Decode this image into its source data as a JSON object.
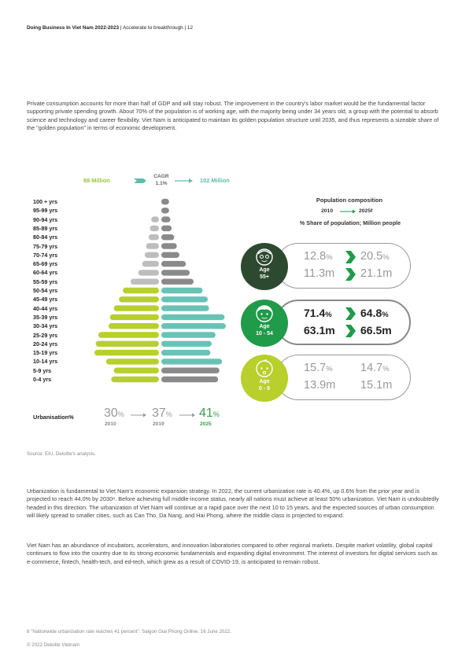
{
  "header": {
    "title": "Doing Business In Viet Nam 2022-2023",
    "rest": " | Accelerate to breakthrough | 12"
  },
  "intro_paragraph": "Private consumption accounts for more than half of GDP and will stay robust. The improvement in the country's labor market would be the fundamental factor supporting private spending growth. About 70% of the population is of working age, with the majority being under 34 years old, a group with the potential to absorb science and technology and career flexibility. Viet Nam is anticipated to maintain its golden population structure until 2035, and thus represents a sizeable share of the \"golden population\" in terms of economic development.",
  "pyramid": {
    "total_2010": "88 Million",
    "total_2025": "102 Million",
    "cagr_label": "CAGR",
    "cagr_value": "1.1%",
    "colors": {
      "young_2010": "#b8cf2c",
      "working_2010": "#b8cf2c",
      "old_2010": "#bdbdbd",
      "young_2025": "#8a8a8a",
      "working_2025": "#68c3b6",
      "old_2025": "#8a8a8a"
    },
    "rows": [
      {
        "label": "100 + yrs",
        "left": 0,
        "right": 1.2,
        "group": "old"
      },
      {
        "label": "95-99 yrs",
        "left": 0,
        "right": 1.2,
        "group": "old"
      },
      {
        "label": "90-94 yrs",
        "left": 1.2,
        "right": 1.4,
        "group": "old"
      },
      {
        "label": "85-89 yrs",
        "left": 1.4,
        "right": 1.6,
        "group": "old"
      },
      {
        "label": "80-84 yrs",
        "left": 1.6,
        "right": 2.0,
        "group": "old"
      },
      {
        "label": "75-79 yrs",
        "left": 2.0,
        "right": 2.4,
        "group": "old"
      },
      {
        "label": "70-74 yrs",
        "left": 2.2,
        "right": 2.8,
        "group": "old"
      },
      {
        "label": "65-69 yrs",
        "left": 2.6,
        "right": 3.8,
        "group": "old"
      },
      {
        "label": "60-64 yrs",
        "left": 3.2,
        "right": 4.4,
        "group": "old"
      },
      {
        "label": "55-59 yrs",
        "left": 4.4,
        "right": 5.0,
        "group": "old"
      },
      {
        "label": "50-54 yrs",
        "left": 5.6,
        "right": 6.4,
        "group": "working"
      },
      {
        "label": "45-49 yrs",
        "left": 6.2,
        "right": 7.2,
        "group": "working"
      },
      {
        "label": "40-44 yrs",
        "left": 7.0,
        "right": 7.4,
        "group": "working"
      },
      {
        "label": "35-39 yrs",
        "left": 7.6,
        "right": 9.8,
        "group": "working"
      },
      {
        "label": "30-34 yrs",
        "left": 7.8,
        "right": 10.0,
        "group": "working"
      },
      {
        "label": "25-29 yrs",
        "left": 9.4,
        "right": 8.4,
        "group": "working"
      },
      {
        "label": "20-24 yrs",
        "left": 9.8,
        "right": 7.8,
        "group": "working"
      },
      {
        "label": "15-19 yrs",
        "left": 10.0,
        "right": 7.6,
        "group": "working"
      },
      {
        "label": "10-14 yrs",
        "left": 8.2,
        "right": 9.4,
        "group": "working"
      },
      {
        "label": "5-9 yrs",
        "left": 7.0,
        "right": 9.0,
        "group": "young"
      },
      {
        "label": "0-4 yrs",
        "left": 7.4,
        "right": 8.8,
        "group": "young"
      }
    ]
  },
  "urbanisation": {
    "label": "Urbanisation%",
    "items": [
      {
        "value": "30",
        "unit": "%",
        "year": "2010"
      },
      {
        "value": "37",
        "unit": "%",
        "year": "2019"
      },
      {
        "value": "41",
        "unit": "%",
        "year": "2025"
      }
    ]
  },
  "composition": {
    "title": "Population composition",
    "year_from": "2010",
    "year_to": "2025f",
    "subtitle": "% Share of population; Million people",
    "groups": [
      {
        "age": "Age",
        "range": "55+",
        "share_2010": "12.8",
        "share_2025": "20.5",
        "pop_2010": "11.3",
        "pop_2025": "21.1",
        "unit_share": "%",
        "unit_pop": "m"
      },
      {
        "age": "Age",
        "range": "10 - 54",
        "share_2010": "71.4",
        "share_2025": "64.8",
        "pop_2010": "63.1",
        "pop_2025": "66.5",
        "unit_share": "%",
        "unit_pop": "m"
      },
      {
        "age": "Age",
        "range": "0 - 9",
        "share_2010": "15.7",
        "share_2025": "14.7",
        "pop_2010": "13.9",
        "pop_2025": "15.1",
        "unit_share": "%",
        "unit_pop": "m"
      }
    ],
    "arrow_color": "#1f9b49"
  },
  "source": "Source: EIU, Deloitte's analysis.",
  "urbanization_paragraph": "Urbanization is fundamental to Viet Nam's economic expansion strategy. In 2022, the current urbanization rate is 40.4%, up 0.6% from the prior year and is projected to reach 44.0% by 2030⁸. Before achieving full middle-income status, nearly all nations must achieve at least 50% urbanization. Viet Nam is undoubtedly headed in this direction. The urbanization of Viet Nam will continue at a rapid pace over the next 10 to 15 years, and the expected sources of urban consumption will likely spread to smaller cities, such as Can Tho, Da Nang, and Hai Phong, where the middle class is projected to expand.",
  "vc_paragraph": "Viet Nam has an abundance of incubators, accelerators, and innovation laboratories compared to other regional markets. Despite market volatility, global capital continues to flow into the country due to its strong economic fundamentals and expanding digital environment. The interest of investors for digital services such as e-commerce, fintech, health-tech, and ed-tech, which grew as a result of COVID-19, is anticipated to remain robust.",
  "footnote": "8 \"Nationwide urbanization rate reaches 41 percent\". Saigon Giai Phong Online. 16 June 2022.",
  "copyright": "© 2022 Deloitte Vietnam"
}
